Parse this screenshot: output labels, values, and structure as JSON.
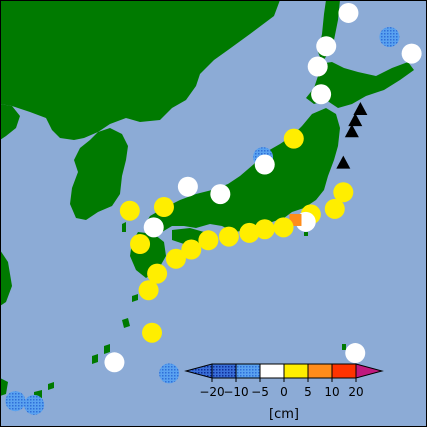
{
  "map": {
    "colors": {
      "sea": "#8cabd6",
      "land": "#007a00",
      "frame": "#000000"
    },
    "markers": [
      {
        "kind": "circle",
        "lon": 141.8,
        "lat": 45.4,
        "class": "white"
      },
      {
        "kind": "circle",
        "lon": 144.2,
        "lat": 44.1,
        "class": "blue"
      },
      {
        "kind": "circle",
        "lon": 140.5,
        "lat": 43.6,
        "class": "white"
      },
      {
        "kind": "circle",
        "lon": 145.5,
        "lat": 43.2,
        "class": "white"
      },
      {
        "kind": "circle",
        "lon": 140.0,
        "lat": 42.5,
        "class": "white"
      },
      {
        "kind": "circle",
        "lon": 140.2,
        "lat": 41.0,
        "class": "white"
      },
      {
        "kind": "circle",
        "lon": 138.6,
        "lat": 38.6,
        "class": "yellow"
      },
      {
        "kind": "circle",
        "lon": 136.8,
        "lat": 37.6,
        "class": "blue"
      },
      {
        "kind": "circle",
        "lon": 136.9,
        "lat": 37.2,
        "class": "white"
      },
      {
        "kind": "circle",
        "lon": 141.5,
        "lat": 35.7,
        "class": "yellow"
      },
      {
        "kind": "circle",
        "lon": 141.0,
        "lat": 34.8,
        "class": "yellow"
      },
      {
        "kind": "circle",
        "lon": 139.6,
        "lat": 34.5,
        "class": "yellow"
      },
      {
        "kind": "circle",
        "lon": 139.3,
        "lat": 34.1,
        "class": "white"
      },
      {
        "kind": "square",
        "lon": 138.7,
        "lat": 34.2,
        "class": "orange"
      },
      {
        "kind": "circle",
        "lon": 138.0,
        "lat": 33.8,
        "class": "yellow"
      },
      {
        "kind": "circle",
        "lon": 136.9,
        "lat": 33.7,
        "class": "yellow"
      },
      {
        "kind": "circle",
        "lon": 136.0,
        "lat": 33.5,
        "class": "yellow"
      },
      {
        "kind": "circle",
        "lon": 134.8,
        "lat": 33.3,
        "class": "yellow"
      },
      {
        "kind": "circle",
        "lon": 133.6,
        "lat": 33.1,
        "class": "yellow"
      },
      {
        "kind": "circle",
        "lon": 132.6,
        "lat": 32.6,
        "class": "yellow"
      },
      {
        "kind": "circle",
        "lon": 131.7,
        "lat": 32.1,
        "class": "yellow"
      },
      {
        "kind": "circle",
        "lon": 130.6,
        "lat": 31.3,
        "class": "yellow"
      },
      {
        "kind": "circle",
        "lon": 130.1,
        "lat": 30.4,
        "class": "yellow"
      },
      {
        "kind": "circle",
        "lon": 129.6,
        "lat": 32.9,
        "class": "yellow"
      },
      {
        "kind": "circle",
        "lon": 130.4,
        "lat": 33.8,
        "class": "white"
      },
      {
        "kind": "circle",
        "lon": 129.0,
        "lat": 34.7,
        "class": "yellow"
      },
      {
        "kind": "circle",
        "lon": 131.0,
        "lat": 34.9,
        "class": "yellow"
      },
      {
        "kind": "circle",
        "lon": 132.4,
        "lat": 36.0,
        "class": "white"
      },
      {
        "kind": "circle",
        "lon": 134.3,
        "lat": 35.6,
        "class": "white"
      },
      {
        "kind": "circle",
        "lon": 130.3,
        "lat": 28.1,
        "class": "yellow"
      },
      {
        "kind": "circle",
        "lon": 128.1,
        "lat": 26.5,
        "class": "white"
      },
      {
        "kind": "circle",
        "lon": 131.3,
        "lat": 25.9,
        "class": "blue"
      },
      {
        "kind": "circle",
        "lon": 142.2,
        "lat": 27.0,
        "class": "white"
      },
      {
        "kind": "circle",
        "lon": 122.3,
        "lat": 24.4,
        "class": "blue"
      },
      {
        "kind": "circle",
        "lon": 123.4,
        "lat": 24.2,
        "class": "blue"
      },
      {
        "kind": "triangle",
        "lon": 142.5,
        "lat": 40.2,
        "class": "black"
      },
      {
        "kind": "triangle",
        "lon": 142.2,
        "lat": 39.6,
        "class": "black"
      },
      {
        "kind": "triangle",
        "lon": 142.0,
        "lat": 39.0,
        "class": "black"
      },
      {
        "kind": "triangle",
        "lon": 141.5,
        "lat": 37.3,
        "class": "black"
      }
    ],
    "classColors": {
      "blue": "#3f8fe8",
      "white": "#ffffff",
      "yellow": "#ffee00",
      "orange": "#ff8c1a",
      "black": "#000000"
    }
  },
  "colorbar": {
    "ticks": [
      "−20",
      "−10",
      "−5",
      "0",
      "5",
      "10",
      "20"
    ],
    "unit": "[cm]",
    "bins": [
      "#1a4fd0",
      "#3f8fe8",
      "#ffffff",
      "#ffee00",
      "#ff8c1a",
      "#ff3300"
    ],
    "under_color": "#142b88",
    "over_color": "#c0197e"
  }
}
